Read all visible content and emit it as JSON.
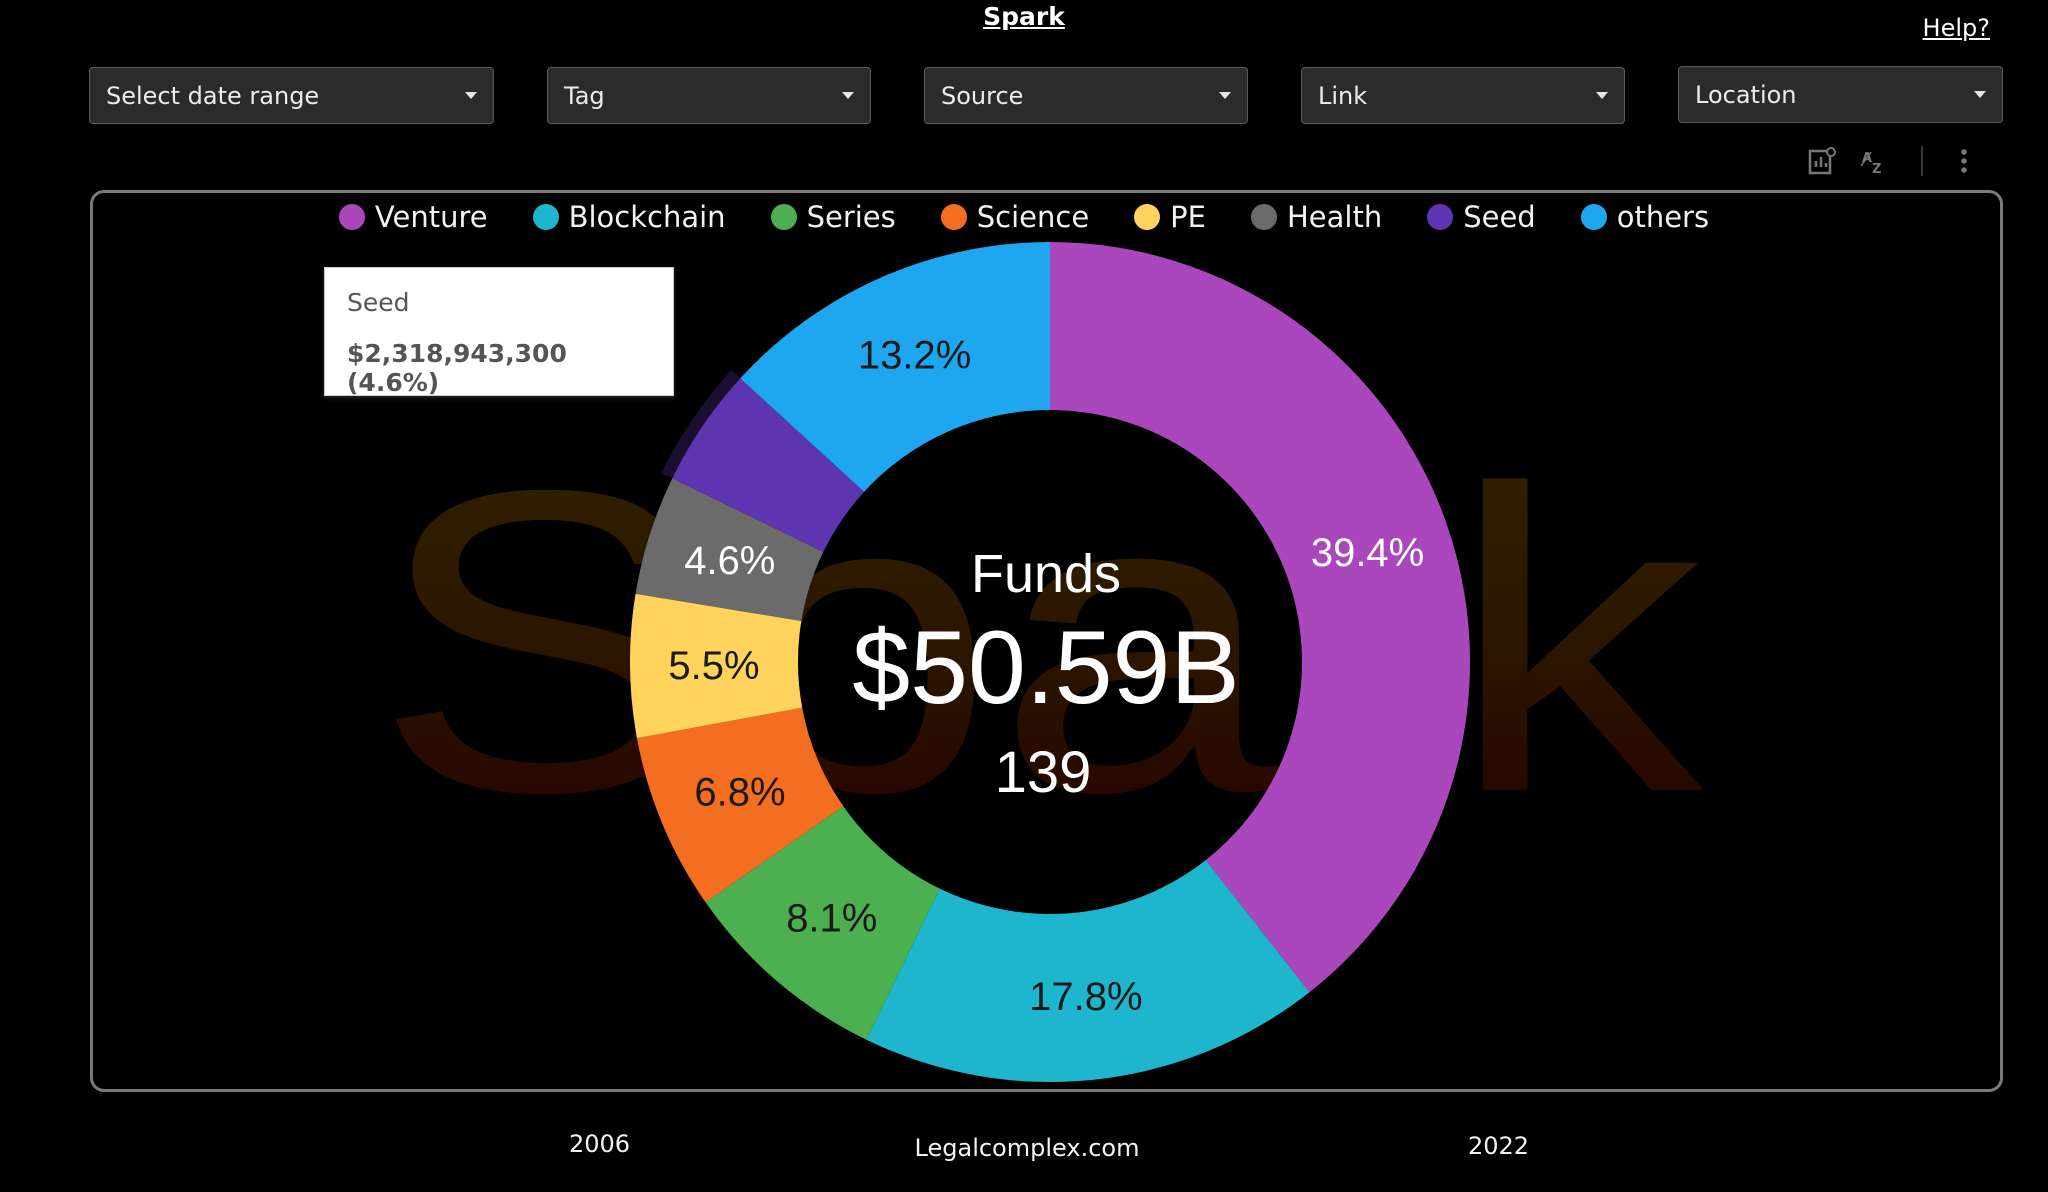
{
  "header": {
    "title": "Spark",
    "help_label": "Help?"
  },
  "filters": {
    "date_range": "Select date range",
    "tag": "Tag",
    "source": "Source",
    "link": "Link",
    "location": "Location"
  },
  "watermark": {
    "text": "Spark"
  },
  "legend": [
    {
      "label": "Venture",
      "color": "#AB47BC"
    },
    {
      "label": "Blockchain",
      "color": "#1EB6CD"
    },
    {
      "label": "Series",
      "color": "#4CAF50"
    },
    {
      "label": "Science",
      "color": "#F46E21"
    },
    {
      "label": "PE",
      "color": "#FFD35C"
    },
    {
      "label": "Health",
      "color": "#6B6B6B"
    },
    {
      "label": "Seed",
      "color": "#5E35B1"
    },
    {
      "label": "others",
      "color": "#1EA7F0"
    }
  ],
  "tooltip": {
    "title": "Seed",
    "value": "$2,318,943,300 (4.6%)"
  },
  "chart_data": {
    "type": "pie",
    "donut": true,
    "center": {
      "title": "Funds",
      "total": "$50.59B",
      "count": "139"
    },
    "slices": [
      {
        "label": "Venture",
        "value": 39.4,
        "display": "39.4%",
        "color": "#AB47BC"
      },
      {
        "label": "Blockchain",
        "value": 17.8,
        "display": "17.8%",
        "color": "#1EB6CD"
      },
      {
        "label": "Series",
        "value": 8.1,
        "display": "8.1%",
        "color": "#4CAF50"
      },
      {
        "label": "Science",
        "value": 6.8,
        "display": "6.8%",
        "color": "#F46E21"
      },
      {
        "label": "PE",
        "value": 5.5,
        "display": "5.5%",
        "color": "#FFD35C"
      },
      {
        "label": "Health",
        "value": 4.6,
        "display": "4.6%",
        "color": "#6B6B6B"
      },
      {
        "label": "Seed",
        "value": 4.6,
        "display": "",
        "color": "#5E35B1"
      },
      {
        "label": "others",
        "value": 13.2,
        "display": "13.2%",
        "color": "#1EA7F0"
      }
    ],
    "highlighted": "Seed"
  },
  "footer": {
    "start_year": "2006",
    "site": "Legalcomplex.com",
    "end_year": "2022"
  }
}
